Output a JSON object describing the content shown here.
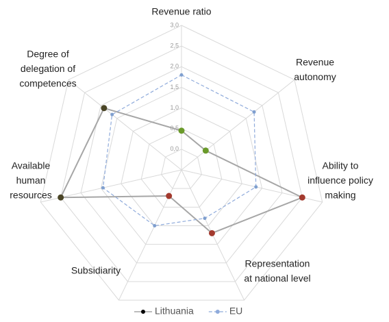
{
  "chart_data": {
    "type": "radar",
    "categories": [
      [
        "Revenue ratio"
      ],
      [
        "Revenue",
        "autonomy"
      ],
      [
        "Ability to",
        "influence policy",
        "making"
      ],
      [
        "Representation",
        "at national level"
      ],
      [
        "Subsidiarity"
      ],
      [
        "Available",
        "human",
        "resources"
      ],
      [
        "Degree of",
        "delegation of",
        "competences"
      ]
    ],
    "ylim": [
      -0.5,
      3.0
    ],
    "yticks": [
      {
        "value": 0,
        "label": "0,0"
      },
      {
        "value": 0.5,
        "label": "0,5"
      },
      {
        "value": 1,
        "label": "1,0"
      },
      {
        "value": 1.5,
        "label": "1,5"
      },
      {
        "value": 2,
        "label": "2,0"
      },
      {
        "value": 2.5,
        "label": "2,5"
      },
      {
        "value": 3,
        "label": "3,0"
      }
    ],
    "grid": true,
    "legend": "bottom",
    "series": [
      {
        "name": "Lithuania",
        "color": "#a6a6a6",
        "legend_marker_color": "#000000",
        "dashed": false,
        "marker_colors": [
          "#6a9a2a",
          "#6a9a2a",
          "#a33a2e",
          "#a33a2e",
          "#a33a2e",
          "#4a4526",
          "#4a4526"
        ],
        "values": [
          0.45,
          0.25,
          2.5,
          1.2,
          0.2,
          2.5,
          1.9
        ]
      },
      {
        "name": "EU",
        "color": "#8eaadb",
        "legend_marker_color": "#8eaadb",
        "dashed": true,
        "marker_colors": [
          "#7f9fcf",
          "#7f9fcf",
          "#7f9fcf",
          "#7f9fcf",
          "#7f9fcf",
          "#7f9fcf",
          "#7f9fcf"
        ],
        "values": [
          1.8,
          1.75,
          1.35,
          0.8,
          1.0,
          1.45,
          1.65
        ]
      }
    ]
  }
}
